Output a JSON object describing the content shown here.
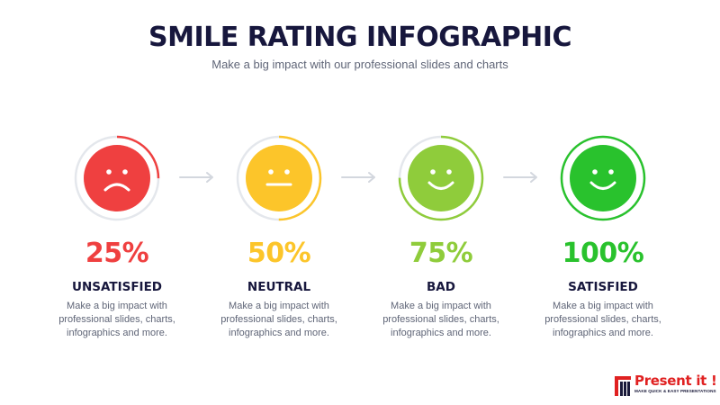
{
  "header": {
    "title": "SMILE RATING INFOGRAPHIC",
    "subtitle": "Make a big impact with our professional slides and charts"
  },
  "ratings": [
    {
      "percent_label": "25%",
      "value": 0.25,
      "label": "UNSATISFIED",
      "description": "Make a big impact with professional slides, charts, infographics and more.",
      "color": "#ef4040",
      "face": "sad"
    },
    {
      "percent_label": "50%",
      "value": 0.5,
      "label": "NEUTRAL",
      "description": "Make a big impact with professional slides, charts, infographics and more.",
      "color": "#fcc52a",
      "face": "neutral"
    },
    {
      "percent_label": "75%",
      "value": 0.75,
      "label": "BAD",
      "description": "Make a big impact with professional slides, charts, infographics and more.",
      "color": "#8fcc3b",
      "face": "happy"
    },
    {
      "percent_label": "100%",
      "value": 1.0,
      "label": "SATISFIED",
      "description": "Make a big impact with professional slides, charts, infographics and more.",
      "color": "#29c22d",
      "face": "happy"
    }
  ],
  "colors": {
    "track": "#e4e7ec",
    "arrow": "#d3d7de",
    "title": "#17173d",
    "body": "#5f6577"
  },
  "logo": {
    "name": "Present it !",
    "tagline": "MAKE QUICK & EASY PRESENTATIONS"
  }
}
